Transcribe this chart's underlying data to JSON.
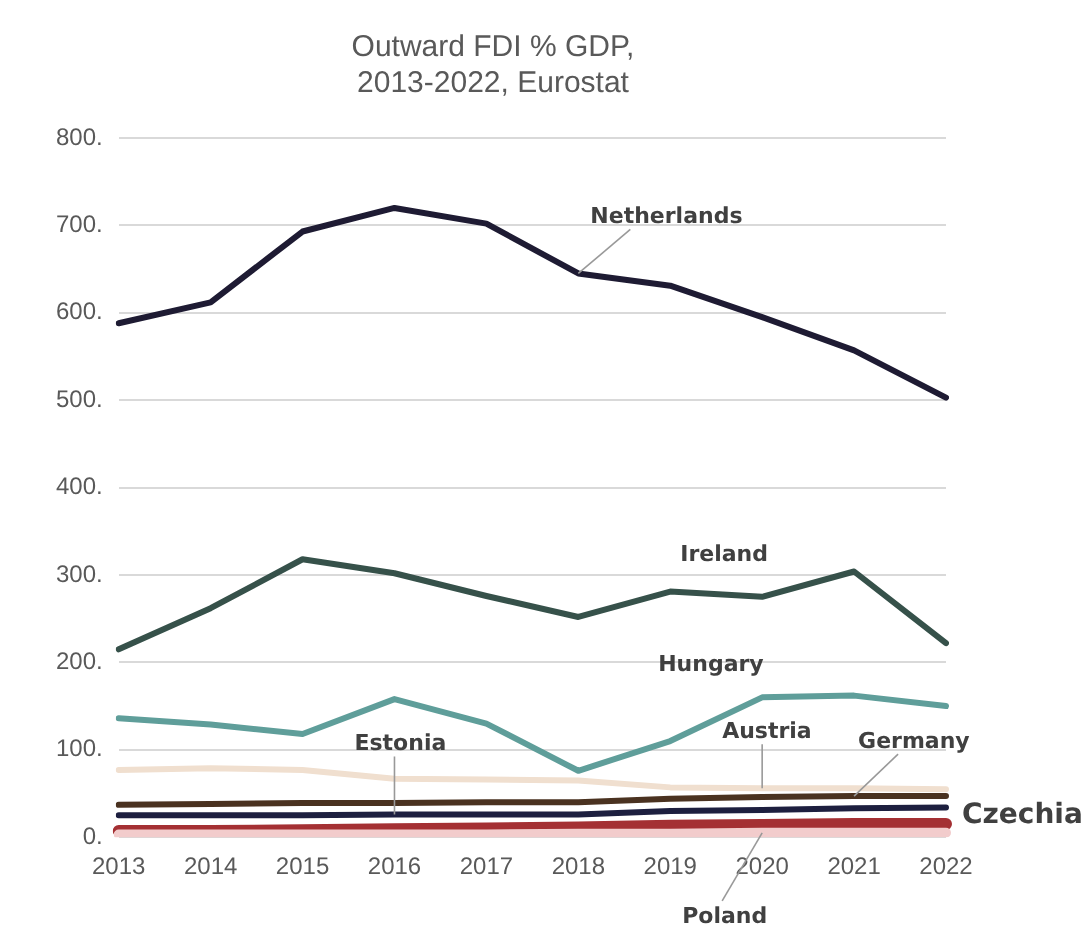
{
  "chart_data": {
    "type": "line",
    "title": "Outward FDI % GDP,\n2013-2022, Eurostat",
    "categories": [
      "2013",
      "2014",
      "2015",
      "2016",
      "2017",
      "2018",
      "2019",
      "2020",
      "2021",
      "2022"
    ],
    "series": [
      {
        "name": "Netherlands",
        "color": "#1e1b33",
        "values": [
          588,
          612,
          693,
          720,
          702,
          645,
          631,
          595,
          557,
          503
        ]
      },
      {
        "name": "Ireland",
        "color": "#36514a",
        "values": [
          215,
          262,
          318,
          302,
          276,
          252,
          281,
          275,
          304,
          222
        ]
      },
      {
        "name": "Hungary",
        "color": "#5f9e9a",
        "values": [
          136,
          129,
          118,
          158,
          130,
          76,
          110,
          160,
          162,
          150
        ]
      },
      {
        "name": "Austria",
        "color": "#f0dfcf",
        "values": [
          77,
          79,
          77,
          67,
          66,
          65,
          57,
          56,
          56,
          55
        ]
      },
      {
        "name": "Germany",
        "color": "#4a3220",
        "values": [
          37,
          38,
          39,
          39,
          40,
          40,
          44,
          46,
          47,
          47
        ]
      },
      {
        "name": "Estonia",
        "color": "#1d1f3f",
        "values": [
          25,
          25,
          25,
          26,
          26,
          26,
          30,
          31,
          33,
          34
        ]
      },
      {
        "name": "Poland",
        "color": "#f2cccc",
        "values": [
          3,
          3,
          3,
          3,
          3,
          4,
          4,
          5,
          5,
          5
        ]
      },
      {
        "name": "Czechia",
        "color": "#a43033",
        "values": [
          7,
          7,
          8,
          9,
          10,
          11,
          13,
          14,
          15,
          15
        ]
      }
    ],
    "ylim": [
      0,
      800
    ],
    "yticks": [
      {
        "value": 0,
        "label": "0."
      },
      {
        "value": 100,
        "label": "100."
      },
      {
        "value": 200,
        "label": "200."
      },
      {
        "value": 300,
        "label": "300."
      },
      {
        "value": 400,
        "label": "400."
      },
      {
        "value": 500,
        "label": "500."
      },
      {
        "value": 600,
        "label": "600."
      },
      {
        "value": 700,
        "label": "700."
      },
      {
        "value": 800,
        "label": "800."
      }
    ],
    "grid": "y",
    "legend": false,
    "line_style": "solid",
    "marker": "none"
  }
}
